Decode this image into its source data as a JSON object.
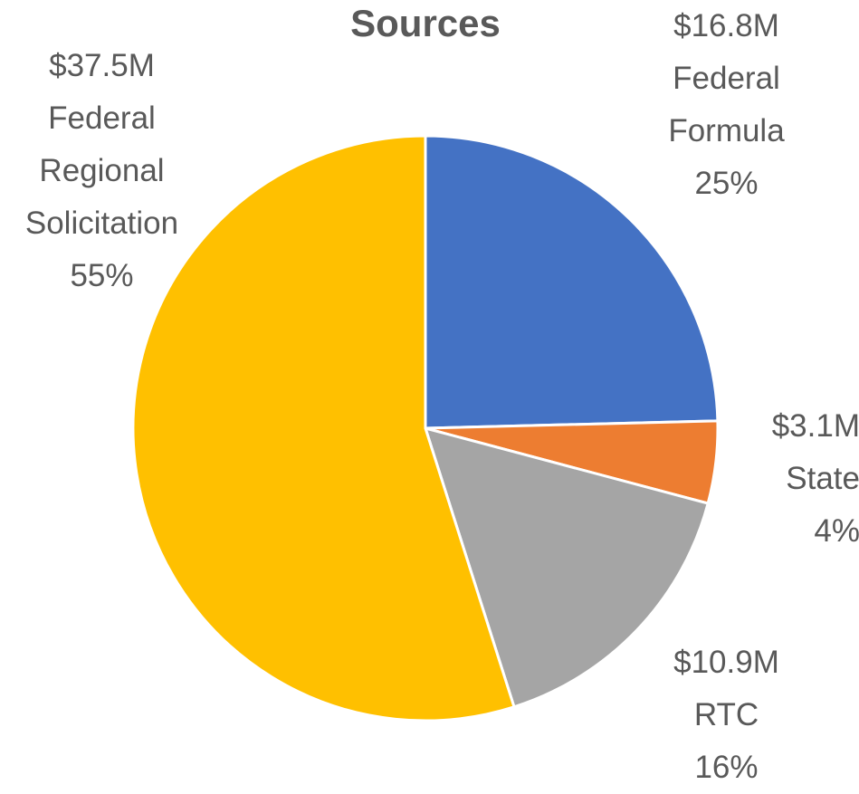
{
  "chart_data": {
    "type": "pie",
    "title": "Sources",
    "categories": [
      "Federal Formula",
      "State",
      "RTC",
      "Federal Regional Solicitation"
    ],
    "values": [
      16.8,
      3.1,
      10.9,
      37.5
    ],
    "value_labels": [
      "$16.8M",
      "$3.1M",
      "$10.9M",
      "$37.5M"
    ],
    "percents": [
      25,
      4,
      16,
      55
    ],
    "percent_labels": [
      "25%",
      "4%",
      "16%",
      "55%"
    ],
    "colors": [
      "#4472c4",
      "#ed7d31",
      "#a5a5a5",
      "#ffc000"
    ]
  }
}
